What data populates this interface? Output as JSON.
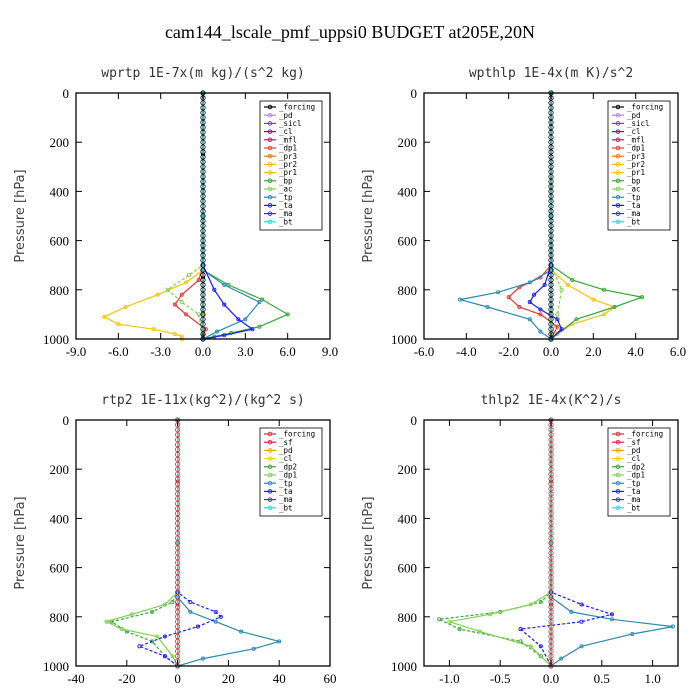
{
  "suptitle": "cam144_lscale_pmf_uppsi0  BUDGET at205E,20N",
  "chart_data": [
    {
      "type": "line",
      "title": "wprtp  1E-7x(m kg)/(s^2 kg)",
      "ylabel": "Pressure [hPa]",
      "xlim": [
        -9,
        9
      ],
      "ylim": [
        0,
        1000
      ],
      "xticks": [
        "-9.0",
        "-6.0",
        "-3.0",
        "0.0",
        "3.0",
        "6.0",
        "9.0"
      ],
      "yticks": [
        "0",
        "200",
        "400",
        "600",
        "800",
        "1000"
      ],
      "legend_position": "top-right",
      "legend": [
        "_forcing",
        "_pd",
        "_sicl",
        "_cl",
        "_mfl",
        "_dp1",
        "_pr3",
        "_pr2",
        "_pr1",
        "_bp",
        "_ac",
        "_tp",
        "_ta",
        "_ma",
        "_bt"
      ],
      "series": [
        {
          "name": "_forcing",
          "color": "#000000",
          "x": [
            0,
            0,
            0,
            0,
            0
          ],
          "y": [
            0,
            250,
            500,
            750,
            1000
          ]
        },
        {
          "name": "_pd",
          "color": "#b87fd9",
          "x": [
            0,
            0,
            0
          ],
          "y": [
            0,
            500,
            1000
          ]
        },
        {
          "name": "_sicl",
          "color": "#7a3fbf",
          "x": [
            0,
            0,
            0
          ],
          "y": [
            0,
            500,
            1000
          ]
        },
        {
          "name": "_cl",
          "color": "#6a1b8a",
          "x": [
            0,
            0,
            0
          ],
          "y": [
            0,
            500,
            1000
          ]
        },
        {
          "name": "_mfl",
          "color": "#c2185b",
          "x": [
            0,
            0,
            0
          ],
          "y": [
            0,
            500,
            1000
          ]
        },
        {
          "name": "_dp1",
          "color": "#e53935",
          "x": [
            0,
            0,
            -0.3,
            -1.5,
            -2.0,
            -1.2,
            0.2,
            0,
            0
          ],
          "y": [
            0,
            700,
            760,
            820,
            860,
            900,
            960,
            985,
            1000
          ]
        },
        {
          "name": "_pr3",
          "color": "#ff6f00",
          "x": [
            0,
            0,
            0,
            0
          ],
          "y": [
            0,
            700,
            900,
            1000
          ]
        },
        {
          "name": "_pr2",
          "color": "#ffb300",
          "x": [
            0,
            0,
            0
          ],
          "y": [
            0,
            500,
            1000
          ]
        },
        {
          "name": "_pr1",
          "color": "#ffc107",
          "x": [
            0,
            0,
            -1.2,
            -3.2,
            -5.5,
            -7.0,
            -6.0,
            -3.5,
            -2.0,
            -1.5,
            -1.5
          ],
          "y": [
            0,
            720,
            770,
            820,
            870,
            910,
            940,
            960,
            980,
            990,
            1000
          ]
        },
        {
          "name": "_bp",
          "color": "#33aa33",
          "x": [
            0,
            0,
            1.8,
            4.2,
            6.0,
            4.0,
            2.0,
            0.8,
            0
          ],
          "y": [
            0,
            720,
            780,
            840,
            900,
            950,
            975,
            990,
            1000
          ]
        },
        {
          "name": "_ac",
          "color": "#7fd14f",
          "x": [
            0,
            0,
            -1.0,
            -2.5,
            -1.5,
            -0.3,
            0
          ],
          "y": [
            0,
            700,
            740,
            800,
            850,
            900,
            1000
          ]
        },
        {
          "name": "_tp",
          "color": "#2a8ab3",
          "x": [
            0,
            0,
            1.5,
            4.0,
            3.0,
            1.0,
            0
          ],
          "y": [
            0,
            720,
            780,
            850,
            920,
            970,
            1000
          ]
        },
        {
          "name": "_ta",
          "color": "#1a1aff",
          "x": [
            0,
            0,
            0.8,
            1.5,
            2.5,
            3.5,
            1.5,
            0
          ],
          "y": [
            0,
            700,
            800,
            860,
            920,
            960,
            985,
            1000
          ]
        },
        {
          "name": "_ma",
          "color": "#3a3aaa",
          "x": [
            0,
            0,
            0
          ],
          "y": [
            0,
            500,
            1000
          ]
        },
        {
          "name": "_bt",
          "color": "#22dddd",
          "x": [
            0,
            0,
            0
          ],
          "y": [
            0,
            500,
            1000
          ]
        }
      ]
    },
    {
      "type": "line",
      "title": "wpthlp  1E-4x(m K)/s^2",
      "ylabel": "Pressure [hPa]",
      "xlim": [
        -6,
        6
      ],
      "ylim": [
        0,
        1000
      ],
      "xticks": [
        "-6.0",
        "-4.0",
        "-2.0",
        "0.0",
        "2.0",
        "4.0",
        "6.0"
      ],
      "yticks": [
        "0",
        "200",
        "400",
        "600",
        "800",
        "1000"
      ],
      "legend_position": "top-right",
      "legend": [
        "_forcing",
        "_pd",
        "_sicl",
        "_cl",
        "_mfl",
        "_dp1",
        "_pr3",
        "_pr2",
        "_pr1",
        "_bp",
        "_ac",
        "_tp",
        "_ta",
        "_ma",
        "_bt"
      ],
      "series": [
        {
          "name": "_forcing",
          "color": "#000000",
          "x": [
            0,
            0,
            0
          ],
          "y": [
            0,
            500,
            1000
          ]
        },
        {
          "name": "_pd",
          "color": "#b87fd9",
          "x": [
            0,
            0,
            0
          ],
          "y": [
            0,
            500,
            1000
          ]
        },
        {
          "name": "_sicl",
          "color": "#7a3fbf",
          "x": [
            0,
            0,
            0
          ],
          "y": [
            0,
            500,
            1000
          ]
        },
        {
          "name": "_cl",
          "color": "#6a1b8a",
          "x": [
            0,
            0,
            0
          ],
          "y": [
            0,
            500,
            1000
          ]
        },
        {
          "name": "_mfl",
          "color": "#c2185b",
          "x": [
            0,
            0,
            0
          ],
          "y": [
            0,
            500,
            1000
          ]
        },
        {
          "name": "_dp1",
          "color": "#e53935",
          "x": [
            0,
            0,
            -0.5,
            -1.5,
            -2.0,
            -1.5,
            -0.5,
            0.3,
            0
          ],
          "y": [
            0,
            700,
            750,
            790,
            830,
            870,
            900,
            950,
            1000
          ]
        },
        {
          "name": "_pr3",
          "color": "#ff6f00",
          "x": [
            0,
            0,
            0
          ],
          "y": [
            0,
            500,
            1000
          ]
        },
        {
          "name": "_pr2",
          "color": "#ffb300",
          "x": [
            0,
            0,
            0
          ],
          "y": [
            0,
            500,
            1000
          ]
        },
        {
          "name": "_pr1",
          "color": "#ffc107",
          "x": [
            0,
            0,
            0.8,
            2.0,
            3.0,
            2.5,
            1.0,
            0.3,
            0
          ],
          "y": [
            0,
            720,
            780,
            840,
            870,
            900,
            940,
            980,
            1000
          ]
        },
        {
          "name": "_bp",
          "color": "#33aa33",
          "x": [
            0,
            0,
            1.0,
            2.5,
            4.3,
            3.0,
            1.2,
            0
          ],
          "y": [
            0,
            700,
            760,
            800,
            830,
            870,
            920,
            1000
          ]
        },
        {
          "name": "_ac",
          "color": "#7fd14f",
          "x": [
            0,
            0,
            0.5,
            0.3,
            0
          ],
          "y": [
            0,
            700,
            800,
            900,
            1000
          ]
        },
        {
          "name": "_tp",
          "color": "#2a8ab3",
          "x": [
            0,
            0,
            -1.0,
            -2.5,
            -4.3,
            -3.0,
            -1.0,
            -0.5,
            0
          ],
          "y": [
            0,
            720,
            770,
            810,
            840,
            870,
            920,
            970,
            1000
          ]
        },
        {
          "name": "_ta",
          "color": "#1a1aff",
          "x": [
            0,
            0,
            -0.3,
            -0.8,
            -1.0,
            -0.5,
            0.3,
            0.5,
            0
          ],
          "y": [
            0,
            700,
            780,
            820,
            850,
            880,
            920,
            960,
            1000
          ]
        },
        {
          "name": "_ma",
          "color": "#3a3aaa",
          "x": [
            0,
            0,
            0
          ],
          "y": [
            0,
            500,
            1000
          ]
        },
        {
          "name": "_bt",
          "color": "#22dddd",
          "x": [
            0,
            0,
            0
          ],
          "y": [
            0,
            500,
            1000
          ]
        }
      ]
    },
    {
      "type": "line",
      "title": "rtp2  1E-11x(kg^2)/(kg^2 s)",
      "ylabel": "Pressure [hPa]",
      "xlim": [
        -40,
        60
      ],
      "ylim": [
        0,
        1000
      ],
      "xticks": [
        "-40",
        "-20",
        "0",
        "20",
        "40",
        "60"
      ],
      "yticks": [
        "0",
        "200",
        "400",
        "600",
        "800",
        "1000"
      ],
      "legend_position": "top-right",
      "legend": [
        "_forcing",
        "_sf",
        "_pd",
        "_cl",
        "_dp2",
        "_dp1",
        "_tp",
        "_ta",
        "_ma",
        "_bt"
      ],
      "series": [
        {
          "name": "_forcing",
          "color": "#d32f2f",
          "x": [
            0,
            0,
            0,
            0,
            0
          ],
          "y": [
            0,
            250,
            500,
            750,
            1000
          ]
        },
        {
          "name": "_sf",
          "color": "#ff1744",
          "x": [
            0,
            0,
            0
          ],
          "y": [
            0,
            500,
            1000
          ]
        },
        {
          "name": "_pd",
          "color": "#ffa000",
          "x": [
            0,
            0,
            0
          ],
          "y": [
            0,
            500,
            1000
          ]
        },
        {
          "name": "_cl",
          "color": "#ffcc00",
          "x": [
            0,
            0,
            0
          ],
          "y": [
            0,
            500,
            1000
          ]
        },
        {
          "name": "_dp2",
          "color": "#33aa33",
          "x": [
            0,
            0,
            -2,
            -10,
            -26,
            -20,
            -10,
            -5,
            0
          ],
          "y": [
            0,
            700,
            740,
            780,
            820,
            860,
            900,
            960,
            1000
          ]
        },
        {
          "name": "_dp1",
          "color": "#7fd14f",
          "x": [
            0,
            0,
            -5,
            -18,
            -28,
            -22,
            -8,
            -2,
            0
          ],
          "y": [
            0,
            700,
            750,
            790,
            820,
            850,
            880,
            960,
            1000
          ]
        },
        {
          "name": "_tp",
          "color": "#2a8ab3",
          "x": [
            0,
            0,
            5,
            15,
            25,
            40,
            30,
            10,
            0
          ],
          "y": [
            0,
            720,
            780,
            820,
            860,
            900,
            930,
            970,
            1000
          ]
        },
        {
          "name": "_ta",
          "color": "#1a1aff",
          "x": [
            0,
            0,
            5,
            15,
            17,
            8,
            -5,
            -15,
            -5,
            0
          ],
          "y": [
            0,
            700,
            740,
            780,
            800,
            840,
            880,
            920,
            960,
            1000
          ]
        },
        {
          "name": "_ma",
          "color": "#3a3aaa",
          "x": [
            0,
            0,
            0
          ],
          "y": [
            0,
            500,
            1000
          ]
        },
        {
          "name": "_bt",
          "color": "#22dddd",
          "x": [
            0,
            0,
            0
          ],
          "y": [
            0,
            500,
            1000
          ]
        }
      ]
    },
    {
      "type": "line",
      "title": "thlp2  1E-4x(K^2)/s",
      "ylabel": "Pressure [hPa]",
      "xlim": [
        -1.25,
        1.25
      ],
      "ylim": [
        0,
        1000
      ],
      "xticks": [
        "-1.0",
        "-0.5",
        "0.0",
        "0.5",
        "1.0"
      ],
      "yticks": [
        "0",
        "200",
        "400",
        "600",
        "800",
        "1000"
      ],
      "legend_position": "top-right",
      "legend": [
        "_forcing",
        "_sf",
        "_pd",
        "_cl",
        "_dp2",
        "_dp1",
        "_tp",
        "_ta",
        "_ma",
        "_bt"
      ],
      "series": [
        {
          "name": "_forcing",
          "color": "#d32f2f",
          "x": [
            0,
            0,
            0,
            0,
            0
          ],
          "y": [
            0,
            250,
            500,
            750,
            1000
          ]
        },
        {
          "name": "_sf",
          "color": "#ff1744",
          "x": [
            0,
            0,
            0
          ],
          "y": [
            0,
            500,
            1000
          ]
        },
        {
          "name": "_pd",
          "color": "#ffa000",
          "x": [
            0,
            0,
            0
          ],
          "y": [
            0,
            500,
            1000
          ]
        },
        {
          "name": "_cl",
          "color": "#ffcc00",
          "x": [
            0,
            0,
            0
          ],
          "y": [
            0,
            500,
            1000
          ]
        },
        {
          "name": "_dp2",
          "color": "#33aa33",
          "x": [
            0,
            0,
            -0.1,
            -0.5,
            -1.1,
            -0.9,
            -0.3,
            -0.1,
            0
          ],
          "y": [
            0,
            700,
            740,
            780,
            810,
            850,
            900,
            960,
            1000
          ]
        },
        {
          "name": "_dp1",
          "color": "#7fd14f",
          "x": [
            0,
            0,
            -0.2,
            -0.6,
            -1.0,
            -0.7,
            -0.2,
            0
          ],
          "y": [
            0,
            700,
            750,
            790,
            820,
            860,
            920,
            1000
          ]
        },
        {
          "name": "_tp",
          "color": "#2a8ab3",
          "x": [
            0,
            0,
            0.2,
            0.6,
            1.2,
            0.8,
            0.3,
            0.1,
            0
          ],
          "y": [
            0,
            720,
            780,
            810,
            840,
            870,
            920,
            970,
            1000
          ]
        },
        {
          "name": "_ta",
          "color": "#1a1aff",
          "x": [
            0,
            0,
            0.3,
            0.6,
            0.3,
            -0.3,
            -0.1,
            0
          ],
          "y": [
            0,
            700,
            750,
            790,
            820,
            850,
            920,
            1000
          ]
        },
        {
          "name": "_ma",
          "color": "#3a3aaa",
          "x": [
            0,
            0,
            0
          ],
          "y": [
            0,
            500,
            1000
          ]
        },
        {
          "name": "_bt",
          "color": "#22dddd",
          "x": [
            0,
            0,
            0
          ],
          "y": [
            0,
            500,
            1000
          ]
        }
      ]
    }
  ]
}
